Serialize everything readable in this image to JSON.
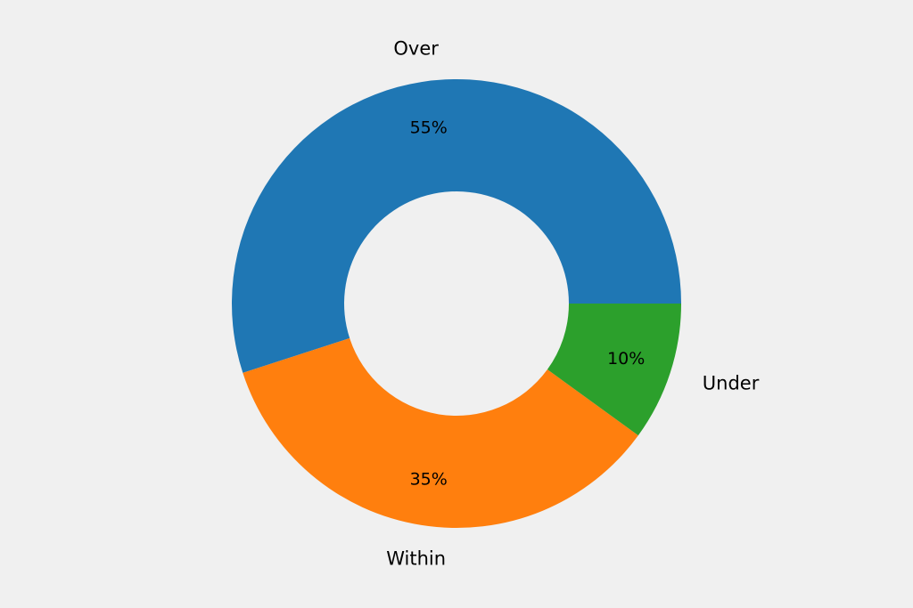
{
  "chart_data": {
    "type": "pie",
    "donut": true,
    "start_angle_deg": 0,
    "direction": "counterclockwise",
    "background": "#f0f0f0",
    "slices": [
      {
        "label": "Over",
        "value": 55,
        "pct_text": "55%",
        "color": "#1f77b4"
      },
      {
        "label": "Within",
        "value": 35,
        "pct_text": "35%",
        "color": "#ff7f0e"
      },
      {
        "label": "Under",
        "value": 10,
        "pct_text": "10%",
        "color": "#2ca02c"
      }
    ]
  }
}
